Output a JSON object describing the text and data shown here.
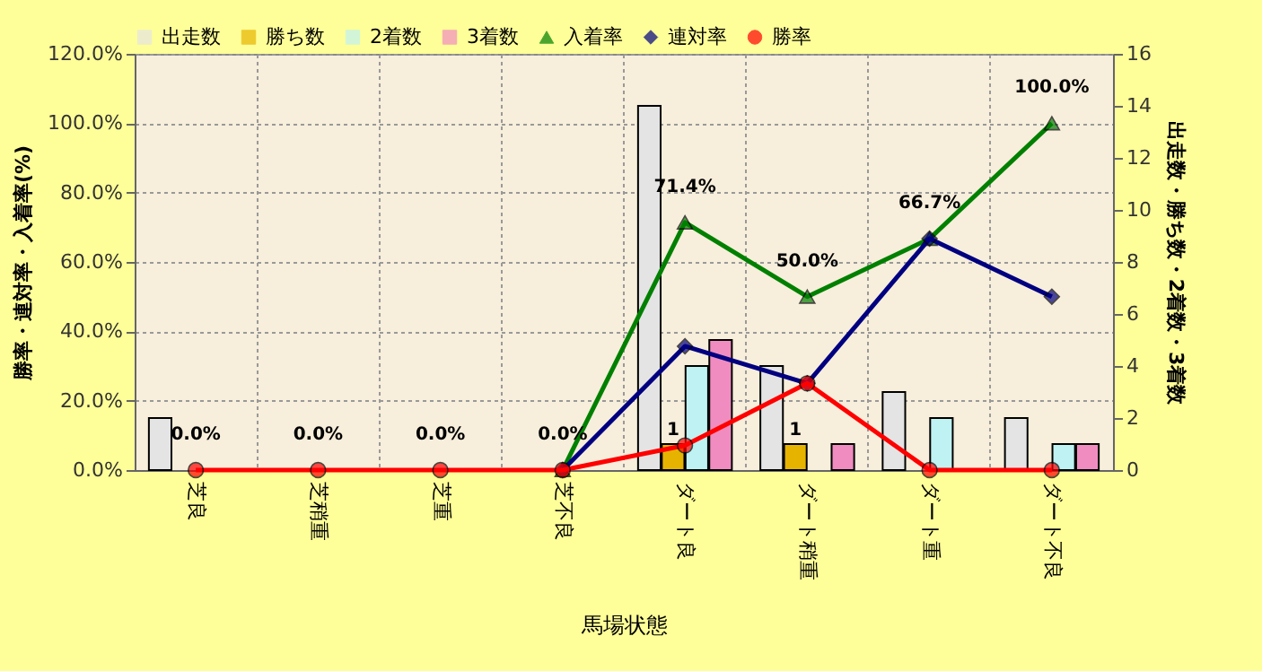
{
  "chart_data": {
    "type": "bar",
    "xlabel": "馬場状態",
    "ylabel": "勝率・連対率・入着率(%)",
    "y2label": "出走数・勝ち数・2着数・3着数",
    "categories": [
      "芝良",
      "芝稍重",
      "芝重",
      "芝不良",
      "ダート良",
      "ダート稍重",
      "ダート重",
      "ダート不良"
    ],
    "ylim": [
      0,
      120
    ],
    "yticks": [
      {
        "value": 0,
        "label": "0.0%"
      },
      {
        "value": 20,
        "label": "20.0%"
      },
      {
        "value": 40,
        "label": "40.0%"
      },
      {
        "value": 60,
        "label": "60.0%"
      },
      {
        "value": 80,
        "label": "80.0%"
      },
      {
        "value": 100,
        "label": "100.0%"
      },
      {
        "value": 120,
        "label": "120.0%"
      }
    ],
    "y2lim": [
      0,
      16
    ],
    "y2ticks": [
      0,
      2,
      4,
      6,
      8,
      10,
      12,
      14,
      16
    ],
    "grid": true,
    "legend": "top",
    "series": [
      {
        "name": "出走数",
        "axis": "y2",
        "color": "#e4e4e4",
        "values": [
          2,
          0,
          0,
          0,
          14,
          4,
          3,
          2
        ]
      },
      {
        "name": "勝ち数",
        "axis": "y2",
        "color": "#e6b400",
        "values": [
          0,
          0,
          0,
          0,
          1,
          1,
          0,
          0
        ],
        "value_labels": [
          null,
          null,
          null,
          null,
          "1",
          "1",
          null,
          null
        ]
      },
      {
        "name": "2着数",
        "axis": "y2",
        "color": "#bff2f2",
        "values": [
          0,
          0,
          0,
          0,
          4,
          0,
          2,
          1
        ]
      },
      {
        "name": "3着数",
        "axis": "y2",
        "color": "#f08cc0",
        "values": [
          0,
          0,
          0,
          0,
          5,
          1,
          0,
          1
        ]
      },
      {
        "name": "入着率",
        "type": "line",
        "axis": "y",
        "marker": "triangle",
        "color": "#008000",
        "values": [
          null,
          null,
          null,
          0,
          71.4,
          50.0,
          66.7,
          100.0
        ],
        "value_labels": [
          null,
          null,
          null,
          null,
          "71.4%",
          "50.0%",
          "66.7%",
          "100.0%"
        ]
      },
      {
        "name": "連対率",
        "type": "line",
        "axis": "y",
        "marker": "diamond",
        "color": "#000080",
        "values": [
          null,
          null,
          null,
          0,
          35.7,
          25.0,
          66.7,
          50.0
        ]
      },
      {
        "name": "勝率",
        "type": "line",
        "axis": "y",
        "marker": "circle",
        "color": "#ff0000",
        "values": [
          0,
          0,
          0,
          0,
          7.1,
          25.0,
          0,
          0
        ],
        "value_labels": [
          "0.0%",
          "0.0%",
          "0.0%",
          "0.0%",
          null,
          null,
          null,
          null
        ]
      }
    ]
  }
}
